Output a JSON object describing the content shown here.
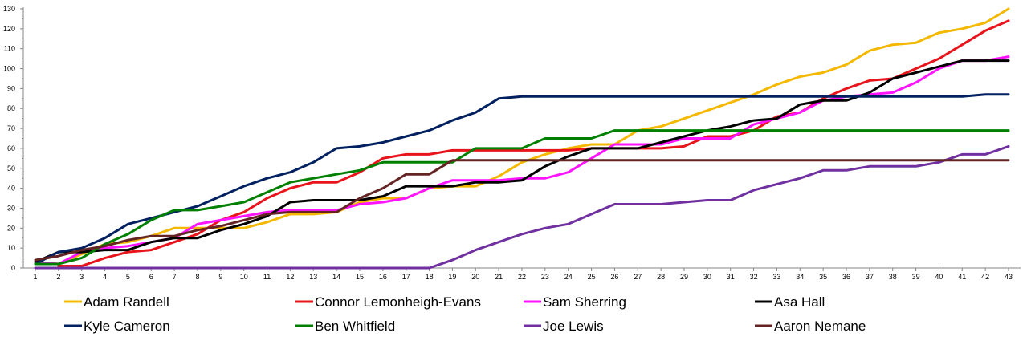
{
  "chart_data": {
    "type": "line",
    "title": "",
    "xlabel": "",
    "ylabel": "",
    "x": [
      1,
      2,
      3,
      4,
      5,
      6,
      7,
      8,
      9,
      10,
      11,
      12,
      13,
      14,
      15,
      16,
      17,
      18,
      19,
      20,
      21,
      22,
      23,
      24,
      25,
      26,
      27,
      28,
      29,
      30,
      31,
      32,
      33,
      34,
      35,
      36,
      37,
      38,
      39,
      40,
      41,
      42,
      43
    ],
    "xlim": [
      1,
      43
    ],
    "ylim": [
      0,
      130
    ],
    "yticks": [
      0,
      10,
      20,
      30,
      40,
      50,
      60,
      70,
      80,
      90,
      100,
      110,
      120,
      130
    ],
    "grid": false,
    "legend_position": "bottom",
    "series": [
      {
        "name": "Adam Randell",
        "color": "#F5B800",
        "values": [
          3,
          2,
          7,
          12,
          13,
          16,
          20,
          20,
          20,
          20,
          23,
          27,
          27,
          28,
          33,
          35,
          35,
          40,
          41,
          41,
          46,
          53,
          57,
          60,
          62,
          62,
          69,
          71,
          75,
          79,
          83,
          87,
          92,
          96,
          98,
          102,
          109,
          112,
          113,
          118,
          120,
          123,
          130
        ]
      },
      {
        "name": "Connor Lemonheigh-Evans",
        "color": "#E8141B",
        "values": [
          null,
          1,
          1,
          5,
          8,
          9,
          13,
          17,
          24,
          28,
          35,
          40,
          43,
          43,
          48,
          55,
          57,
          57,
          59,
          59,
          59,
          59,
          59,
          59,
          60,
          60,
          60,
          60,
          61,
          66,
          66,
          69,
          76,
          78,
          85,
          90,
          94,
          95,
          100,
          105,
          112,
          119,
          124
        ]
      },
      {
        "name": "Sam Sherring",
        "color": "#FF14FF",
        "values": [
          3,
          2,
          8,
          10,
          11,
          13,
          15,
          22,
          24,
          26,
          28,
          29,
          29,
          29,
          32,
          33,
          35,
          40,
          44,
          44,
          44,
          45,
          45,
          48,
          55,
          62,
          62,
          62,
          65,
          65,
          65,
          72,
          75,
          78,
          84,
          86,
          87,
          88,
          93,
          100,
          104,
          104,
          106
        ]
      },
      {
        "name": "Asa Hall",
        "color": "#000000",
        "values": [
          3,
          8,
          8,
          9,
          9,
          13,
          15,
          15,
          19,
          22,
          26,
          33,
          34,
          34,
          34,
          36,
          41,
          41,
          41,
          43,
          43,
          44,
          51,
          56,
          60,
          60,
          60,
          63,
          66,
          69,
          71,
          74,
          75,
          82,
          84,
          84,
          88,
          95,
          98,
          101,
          104,
          104,
          104
        ]
      },
      {
        "name": "Kyle Cameron",
        "color": "#002060",
        "values": [
          2,
          8,
          10,
          15,
          22,
          25,
          28,
          31,
          36,
          41,
          45,
          48,
          53,
          60,
          61,
          63,
          66,
          69,
          74,
          78,
          85,
          86,
          86,
          86,
          86,
          86,
          86,
          86,
          86,
          86,
          86,
          86,
          86,
          86,
          86,
          86,
          86,
          86,
          86,
          86,
          86,
          87,
          87
        ]
      },
      {
        "name": "Ben Whitfield",
        "color": "#008000",
        "values": [
          2,
          2,
          5,
          12,
          17,
          24,
          29,
          29,
          31,
          33,
          38,
          43,
          45,
          47,
          49,
          53,
          53,
          53,
          53,
          60,
          60,
          60,
          65,
          65,
          65,
          69,
          69,
          69,
          69,
          69,
          69,
          69,
          69,
          69,
          69,
          69,
          69,
          69,
          69,
          69,
          69,
          69,
          69
        ]
      },
      {
        "name": "Joe Lewis",
        "color": "#7030A0",
        "values": [
          0,
          0,
          0,
          0,
          0,
          0,
          0,
          0,
          0,
          0,
          0,
          0,
          0,
          0,
          0,
          0,
          0,
          0,
          4,
          9,
          13,
          17,
          20,
          22,
          27,
          32,
          32,
          32,
          33,
          34,
          34,
          39,
          42,
          45,
          49,
          49,
          51,
          51,
          51,
          53,
          57,
          57,
          61
        ]
      },
      {
        "name": "Aaron Nemane",
        "color": "#632423",
        "values": [
          4,
          6,
          9,
          11,
          14,
          16,
          16,
          19,
          21,
          24,
          27,
          28,
          28,
          28,
          35,
          40,
          47,
          47,
          54,
          54,
          54,
          54,
          54,
          54,
          54,
          54,
          54,
          54,
          54,
          54,
          54,
          54,
          54,
          54,
          54,
          54,
          54,
          54,
          54,
          54,
          54,
          54,
          54
        ]
      }
    ]
  }
}
